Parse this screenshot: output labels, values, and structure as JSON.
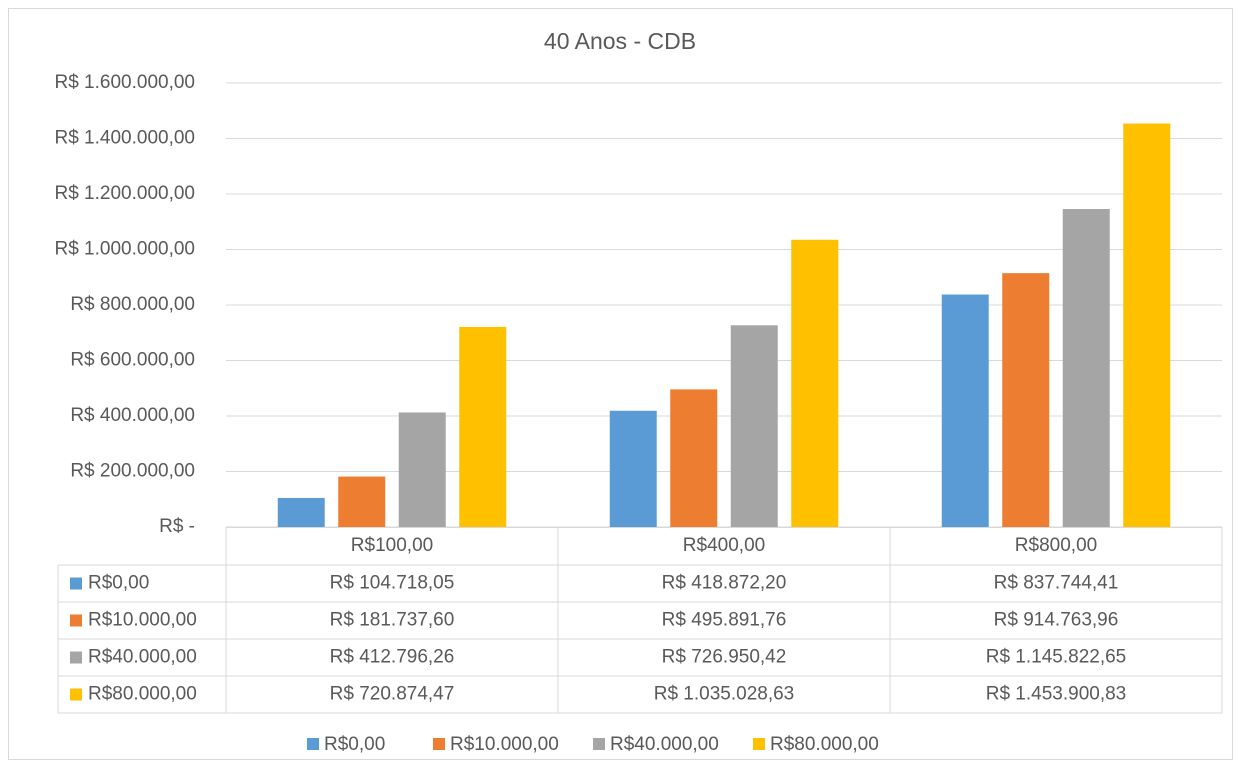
{
  "chart_data": {
    "type": "bar",
    "title": "40 Anos - CDB",
    "categories": [
      "R$100,00",
      "R$400,00",
      "R$800,00"
    ],
    "series": [
      {
        "name": "R$0,00",
        "color": "#5b9bd5",
        "values": [
          104718.05,
          418872.2,
          837744.41
        ],
        "value_labels": [
          "R$ 104.718,05",
          "R$ 418.872,20",
          "R$ 837.744,41"
        ]
      },
      {
        "name": "R$10.000,00",
        "color": "#ed7d31",
        "values": [
          181737.6,
          495891.76,
          914763.96
        ],
        "value_labels": [
          "R$ 181.737,60",
          "R$ 495.891,76",
          "R$ 914.763,96"
        ]
      },
      {
        "name": "R$40.000,00",
        "color": "#a5a5a5",
        "values": [
          412796.26,
          726950.42,
          1145822.65
        ],
        "value_labels": [
          "R$ 412.796,26",
          "R$ 726.950,42",
          "R$ 1.145.822,65"
        ]
      },
      {
        "name": "R$80.000,00",
        "color": "#ffc000",
        "values": [
          720874.47,
          1035028.63,
          1453900.83
        ],
        "value_labels": [
          "R$ 720.874,47",
          "R$ 1.035.028,63",
          "R$ 1.453.900,83"
        ]
      }
    ],
    "ylim": [
      0,
      1600000
    ],
    "yticks": [
      {
        "value": 0,
        "label": "R$ -"
      },
      {
        "value": 200000,
        "label": "R$ 200.000,00"
      },
      {
        "value": 400000,
        "label": "R$ 400.000,00"
      },
      {
        "value": 600000,
        "label": "R$ 600.000,00"
      },
      {
        "value": 800000,
        "label": "R$ 800.000,00"
      },
      {
        "value": 1000000,
        "label": "R$ 1.000.000,00"
      },
      {
        "value": 1200000,
        "label": "R$ 1.200.000,00"
      },
      {
        "value": 1400000,
        "label": "R$ 1.400.000,00"
      },
      {
        "value": 1600000,
        "label": "R$ 1.600.000,00"
      }
    ],
    "grid": true,
    "legend": "bottom"
  }
}
